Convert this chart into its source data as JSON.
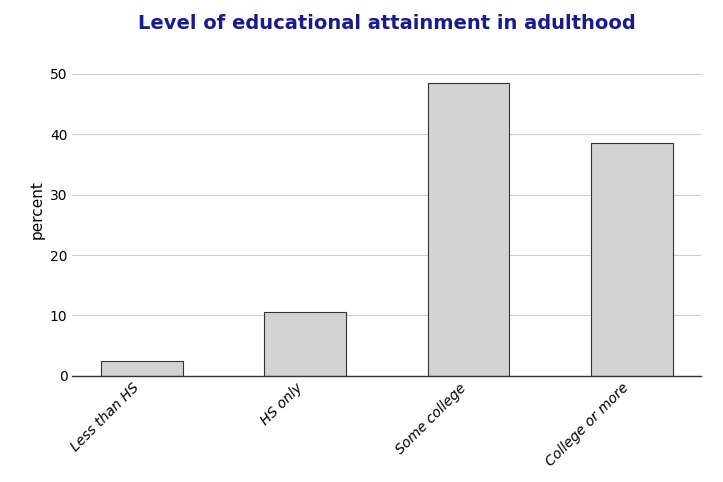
{
  "title": "Level of educational attainment in adulthood",
  "categories": [
    "Less than HS",
    "HS only",
    "Some college",
    "College or more"
  ],
  "values": [
    2.5,
    10.5,
    48.5,
    38.5
  ],
  "bar_color": "#d3d3d3",
  "bar_edge_color": "#333333",
  "ylabel": "percent",
  "ylim": [
    0,
    55
  ],
  "yticks": [
    0,
    10,
    20,
    30,
    40,
    50
  ],
  "title_fontsize": 14,
  "title_color": "#1a1a8c",
  "ylabel_fontsize": 11,
  "tick_label_fontsize": 10,
  "background_color": "#ffffff",
  "grid_color": "#cccccc",
  "bar_width": 0.5
}
